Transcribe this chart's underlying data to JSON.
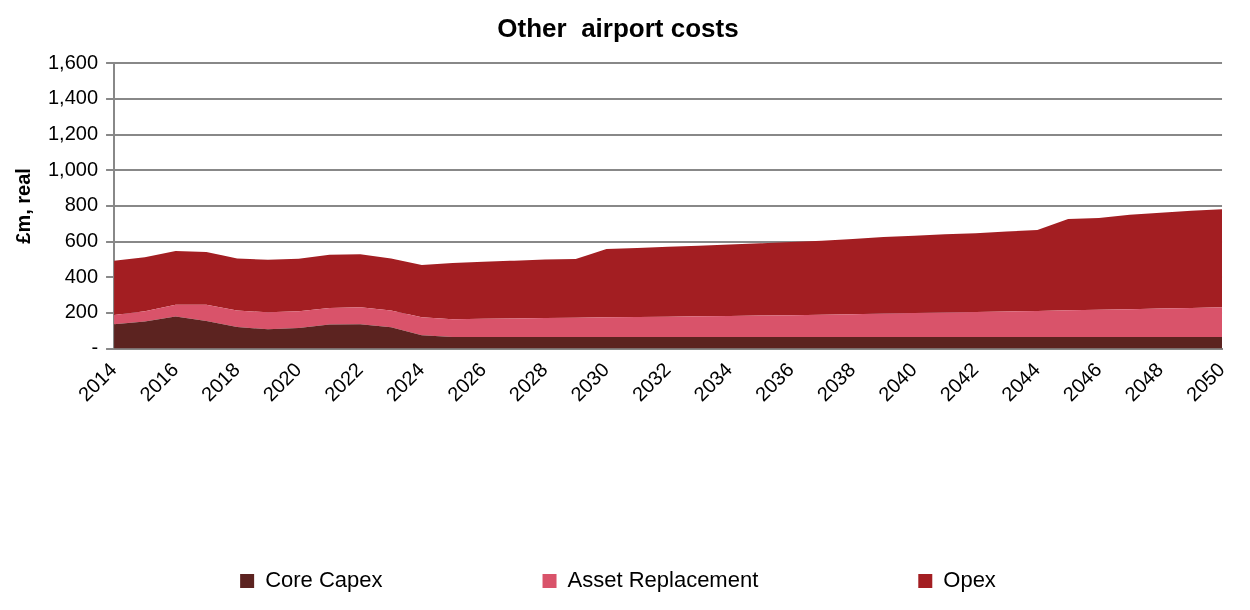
{
  "chart_data": {
    "type": "area",
    "title": "Other  airport costs",
    "ylabel": "£m, real",
    "stacked": true,
    "grid": "y",
    "legend": "bottom",
    "categories": [
      "2014",
      null,
      "2016",
      null,
      "2018",
      null,
      "2020",
      null,
      "2022",
      null,
      "2024",
      null,
      "2026",
      null,
      "2028",
      null,
      "2030",
      null,
      "2032",
      null,
      "2034",
      null,
      "2036",
      null,
      "2038",
      null,
      "2040",
      null,
      "2042",
      null,
      "2044",
      null,
      "2046",
      null,
      "2048",
      null,
      "2050"
    ],
    "ylim": [
      0,
      1600
    ],
    "yticks": [
      {
        "value": 0,
        "label": "-"
      },
      {
        "value": 200,
        "label": "200"
      },
      {
        "value": 400,
        "label": "400"
      },
      {
        "value": 600,
        "label": "600"
      },
      {
        "value": 800,
        "label": "800"
      },
      {
        "value": 1000,
        "label": "1,000"
      },
      {
        "value": 1200,
        "label": "1,200"
      },
      {
        "value": 1400,
        "label": "1,400"
      },
      {
        "value": 1600,
        "label": "1,600"
      }
    ],
    "series": [
      {
        "name": "Core Capex",
        "color": "#5c2320",
        "values": [
          137,
          152,
          180,
          154,
          121,
          108,
          116,
          135,
          137,
          119,
          75,
          65,
          65,
          65,
          65,
          65,
          65,
          65,
          65,
          65,
          65,
          65,
          65,
          65,
          65,
          65,
          65,
          65,
          65,
          65,
          65,
          65,
          65,
          65,
          65,
          65,
          65
        ]
      },
      {
        "name": "Asset Replacement",
        "color": "#d9536a",
        "values": [
          51,
          57,
          65,
          91,
          92,
          95,
          93,
          93,
          94,
          94,
          100,
          100,
          102,
          104,
          106,
          108,
          110,
          112,
          114,
          116,
          118,
          120,
          122,
          125,
          128,
          131,
          134,
          137,
          140,
          143,
          146,
          150,
          153,
          156,
          160,
          163,
          166
        ]
      },
      {
        "name": "Opex",
        "color": "#a31e22",
        "values": [
          305,
          303,
          302,
          297,
          292,
          295,
          294,
          298,
          298,
          292,
          293,
          315,
          320,
          324,
          328,
          329,
          383,
          387,
          392,
          396,
          400,
          405,
          411,
          415,
          421,
          429,
          434,
          439,
          441,
          448,
          454,
          511,
          514,
          529,
          537,
          545,
          550
        ]
      }
    ]
  }
}
